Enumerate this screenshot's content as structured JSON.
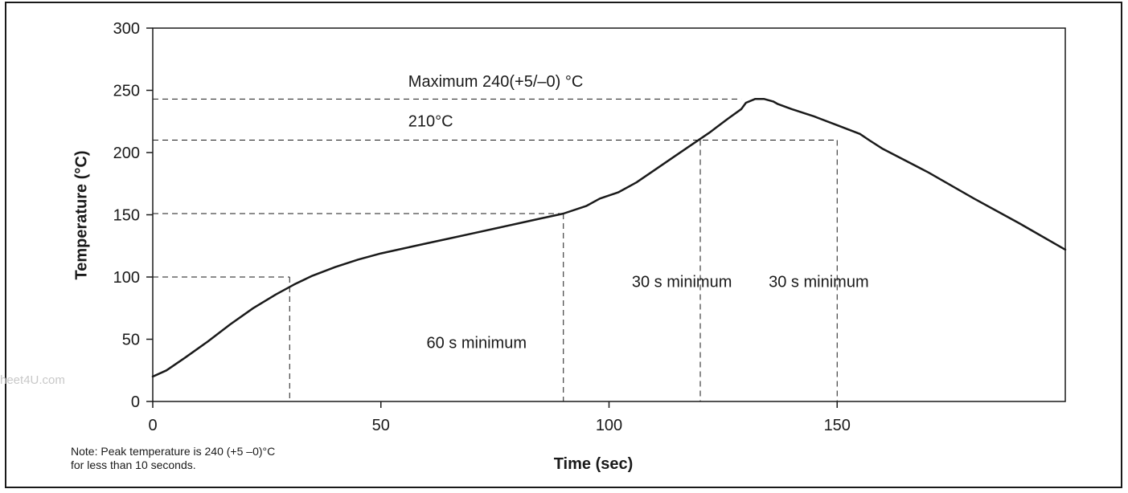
{
  "chart_data": {
    "type": "line",
    "xlabel": "Time (sec)",
    "ylabel": "Temperature (°C)",
    "xlim": [
      0,
      200
    ],
    "ylim": [
      0,
      300
    ],
    "x_ticks": [
      0,
      50,
      100,
      150
    ],
    "y_ticks": [
      0,
      50,
      100,
      150,
      200,
      250,
      300
    ],
    "grid": false,
    "series": [
      {
        "points": [
          [
            0,
            20
          ],
          [
            3,
            25
          ],
          [
            7,
            35
          ],
          [
            12,
            48
          ],
          [
            17,
            62
          ],
          [
            22,
            75
          ],
          [
            27,
            86
          ],
          [
            31,
            94
          ],
          [
            35,
            101
          ],
          [
            40,
            108
          ],
          [
            45,
            114
          ],
          [
            50,
            119
          ],
          [
            55,
            123
          ],
          [
            60,
            127
          ],
          [
            65,
            131
          ],
          [
            70,
            135
          ],
          [
            75,
            139
          ],
          [
            80,
            143
          ],
          [
            85,
            147
          ],
          [
            90,
            151
          ],
          [
            95,
            157
          ],
          [
            98,
            163
          ],
          [
            102,
            168
          ],
          [
            106,
            176
          ],
          [
            110,
            186
          ],
          [
            114,
            196
          ],
          [
            118,
            206
          ],
          [
            122,
            216
          ],
          [
            126,
            227
          ],
          [
            129,
            235
          ],
          [
            130,
            240
          ],
          [
            132,
            243
          ],
          [
            134,
            243
          ],
          [
            136,
            241
          ],
          [
            137,
            239
          ],
          [
            140,
            235
          ],
          [
            145,
            229
          ],
          [
            150,
            222
          ],
          [
            155,
            215
          ],
          [
            157,
            210
          ],
          [
            160,
            203
          ],
          [
            170,
            184
          ],
          [
            180,
            163
          ],
          [
            190,
            143
          ],
          [
            200,
            122
          ]
        ]
      }
    ],
    "reference_lines": {
      "horizontal": [
        {
          "y": 243,
          "x_end": 129
        },
        {
          "y": 210,
          "x_end": 150
        },
        {
          "y": 151,
          "x_end": 90
        },
        {
          "y": 100,
          "x_end": 30
        }
      ],
      "vertical": [
        {
          "x": 30,
          "y_end": 100
        },
        {
          "x": 90,
          "y_end": 151
        },
        {
          "x": 120,
          "y_end": 210
        },
        {
          "x": 150,
          "y_end": 210
        }
      ]
    },
    "annotations": [
      {
        "text": "Maximum 240(+5/–0) °C",
        "x": 56,
        "y": 253
      },
      {
        "text": "210°C",
        "x": 56,
        "y": 221
      },
      {
        "text": "60 s minimum",
        "x": 60,
        "y": 43
      },
      {
        "text": "30 s minimum",
        "x": 105,
        "y": 92
      },
      {
        "text": "30 s minimum",
        "x": 135,
        "y": 92
      }
    ],
    "note": [
      "Note: Peak temperature is 240 (+5 –0)°C",
      "for less than  10 seconds."
    ]
  },
  "watermark": "heet4U.com",
  "colors": {
    "line": "#1a1a1a",
    "dashed": "#1a1a1a",
    "background": "#ffffff"
  }
}
